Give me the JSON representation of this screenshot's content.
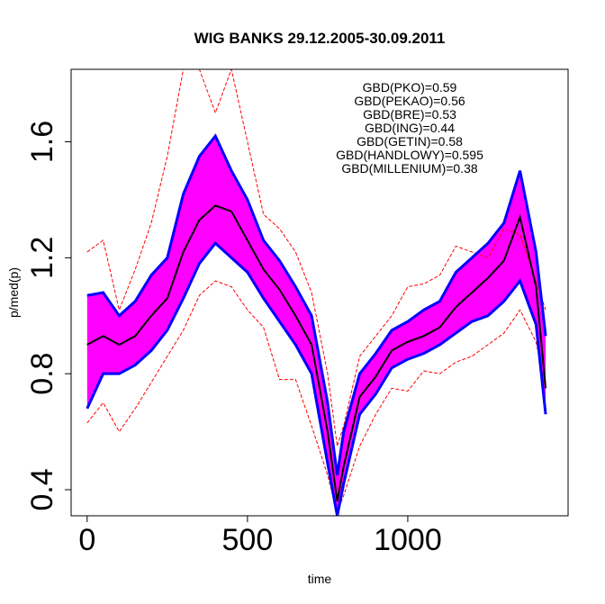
{
  "chart_data": {
    "type": "line",
    "title": "WIG BANKS 29.12.2005-30.09.2011",
    "xlabel": "time",
    "ylabel": "p/med(p)",
    "xlim": [
      -50,
      1500
    ],
    "ylim": [
      0.31,
      1.85
    ],
    "x_ticks": [
      0,
      500,
      1000
    ],
    "x_tick_labels": [
      "0",
      "500",
      "1000"
    ],
    "y_ticks": [
      0.4,
      0.8,
      1.2,
      1.6
    ],
    "y_tick_labels": [
      "0.4",
      "0.8",
      "1.2",
      "1.6"
    ],
    "legend_position": "top-right",
    "grid": false,
    "annotations": [
      "GBD(PKO)=0.59",
      "GBD(PEKAO)=0.56",
      "GBD(BRE)=0.53",
      "GBD(ING)=0.44",
      "GBD(GETIN)=0.58",
      "GBD(HANDLOWY)=0.595",
      "GBD(MILLENIUM)=0.38"
    ],
    "colors": {
      "median": "#000000",
      "band": "#ff00ff",
      "band_edge": "#0000ff",
      "extreme": "#ff0000"
    },
    "x": [
      0,
      50,
      100,
      150,
      200,
      250,
      300,
      350,
      400,
      450,
      500,
      550,
      600,
      650,
      700,
      750,
      780,
      800,
      850,
      900,
      950,
      1000,
      1050,
      1100,
      1150,
      1200,
      1250,
      1300,
      1350,
      1400,
      1430
    ],
    "series": [
      {
        "role": "median",
        "values": [
          0.9,
          0.93,
          0.9,
          0.93,
          1.0,
          1.06,
          1.22,
          1.33,
          1.38,
          1.36,
          1.26,
          1.16,
          1.09,
          1.0,
          0.9,
          0.6,
          0.36,
          0.48,
          0.72,
          0.79,
          0.88,
          0.91,
          0.93,
          0.96,
          1.03,
          1.08,
          1.13,
          1.19,
          1.34,
          1.1,
          0.75
        ]
      },
      {
        "role": "band-upper",
        "values": [
          1.07,
          1.08,
          1.0,
          1.05,
          1.14,
          1.2,
          1.42,
          1.55,
          1.62,
          1.5,
          1.4,
          1.26,
          1.19,
          1.1,
          1.0,
          0.7,
          0.45,
          0.6,
          0.8,
          0.87,
          0.95,
          0.98,
          1.02,
          1.05,
          1.15,
          1.2,
          1.25,
          1.32,
          1.5,
          1.22,
          0.93
        ]
      },
      {
        "role": "band-lower",
        "values": [
          0.68,
          0.8,
          0.8,
          0.83,
          0.88,
          0.95,
          1.06,
          1.18,
          1.25,
          1.2,
          1.15,
          1.06,
          0.98,
          0.9,
          0.8,
          0.49,
          0.31,
          0.42,
          0.66,
          0.73,
          0.82,
          0.85,
          0.87,
          0.9,
          0.94,
          0.98,
          1.0,
          1.05,
          1.12,
          0.97,
          0.66
        ]
      },
      {
        "role": "extreme-upper",
        "values": [
          1.22,
          1.26,
          1.02,
          1.16,
          1.32,
          1.55,
          1.85,
          1.85,
          1.7,
          1.85,
          1.6,
          1.35,
          1.3,
          1.22,
          1.08,
          0.8,
          0.55,
          0.62,
          0.86,
          0.93,
          1.0,
          1.1,
          1.11,
          1.14,
          1.24,
          1.22,
          1.2,
          1.3,
          1.28,
          1.12,
          1.02
        ]
      },
      {
        "role": "extreme-lower",
        "values": [
          0.63,
          0.7,
          0.6,
          0.68,
          0.77,
          0.86,
          0.95,
          1.07,
          1.12,
          1.1,
          1.02,
          0.96,
          0.78,
          0.78,
          0.62,
          0.45,
          0.32,
          0.38,
          0.55,
          0.66,
          0.75,
          0.74,
          0.81,
          0.8,
          0.84,
          0.86,
          0.9,
          0.94,
          1.02,
          0.91,
          0.75
        ]
      }
    ]
  }
}
